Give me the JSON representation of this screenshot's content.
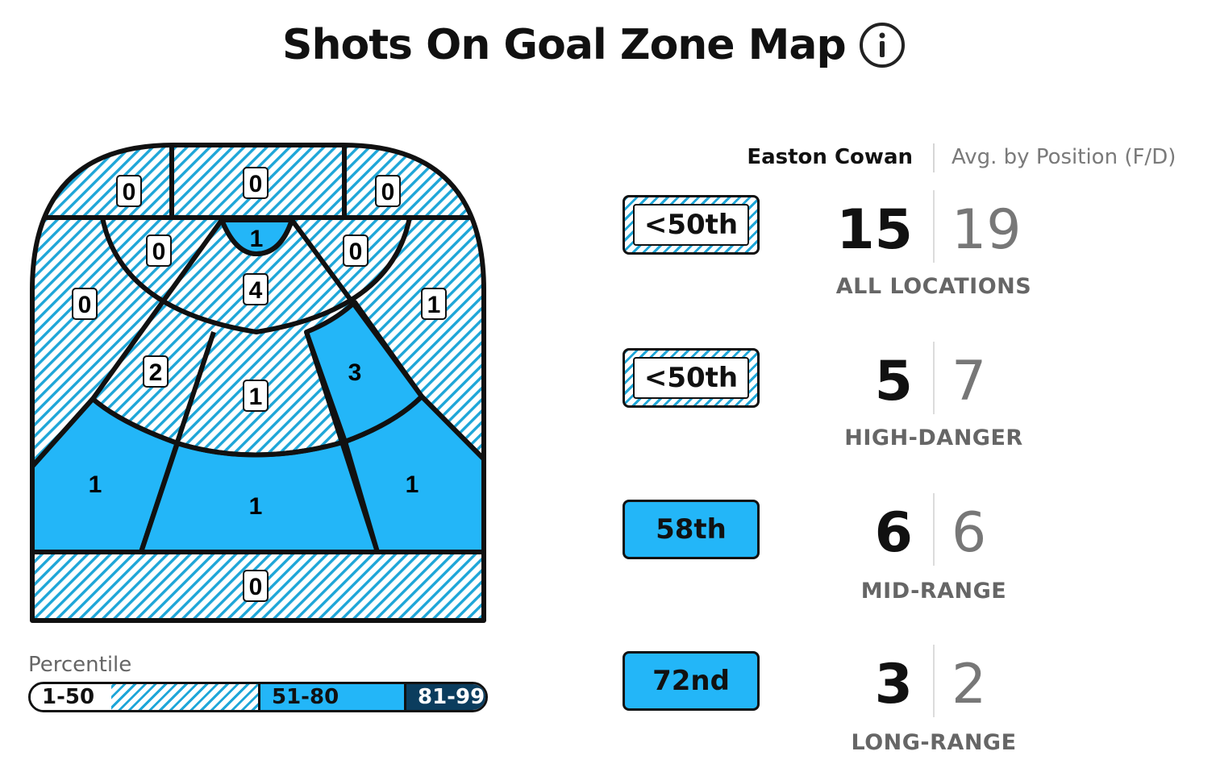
{
  "header": {
    "title": "Shots On Goal Zone Map",
    "info_icon": "info-circle-icon"
  },
  "colors": {
    "hatch": "#1ea6d8",
    "mid": "#23b6f8",
    "high": "#0b3d5e",
    "outline": "#111111"
  },
  "zone_map": {
    "zones": [
      {
        "name": "behind-net-left",
        "value": "0",
        "tier": "low"
      },
      {
        "name": "behind-net-center",
        "value": "0",
        "tier": "low"
      },
      {
        "name": "behind-net-right",
        "value": "0",
        "tier": "low"
      },
      {
        "name": "crease",
        "value": "1",
        "tier": "mid"
      },
      {
        "name": "slot-left-inner",
        "value": "0",
        "tier": "low"
      },
      {
        "name": "slot-right-inner",
        "value": "0",
        "tier": "low"
      },
      {
        "name": "slot-center-inner",
        "value": "4",
        "tier": "low"
      },
      {
        "name": "wing-left",
        "value": "0",
        "tier": "low"
      },
      {
        "name": "wing-right",
        "value": "1",
        "tier": "low"
      },
      {
        "name": "slot-left-outer",
        "value": "2",
        "tier": "low"
      },
      {
        "name": "slot-center-outer",
        "value": "1",
        "tier": "low"
      },
      {
        "name": "slot-right-outer",
        "value": "3",
        "tier": "mid"
      },
      {
        "name": "point-left",
        "value": "1",
        "tier": "mid"
      },
      {
        "name": "point-center",
        "value": "1",
        "tier": "mid"
      },
      {
        "name": "point-right",
        "value": "1",
        "tier": "mid"
      },
      {
        "name": "blue-line",
        "value": "0",
        "tier": "low"
      }
    ]
  },
  "legend": {
    "title": "Percentile",
    "segments": [
      "1-50",
      "51-80",
      "81-99"
    ]
  },
  "columns": {
    "player": "Easton Cowan",
    "avg": "Avg. by Position (F/D)"
  },
  "rows": [
    {
      "badge": "<50th",
      "tier": "low",
      "player": "15",
      "avg": "19",
      "label": "ALL LOCATIONS"
    },
    {
      "badge": "<50th",
      "tier": "low",
      "player": "5",
      "avg": "7",
      "label": "HIGH-DANGER"
    },
    {
      "badge": "58th",
      "tier": "mid",
      "player": "6",
      "avg": "6",
      "label": "MID-RANGE"
    },
    {
      "badge": "72nd",
      "tier": "mid",
      "player": "3",
      "avg": "2",
      "label": "LONG-RANGE"
    }
  ]
}
